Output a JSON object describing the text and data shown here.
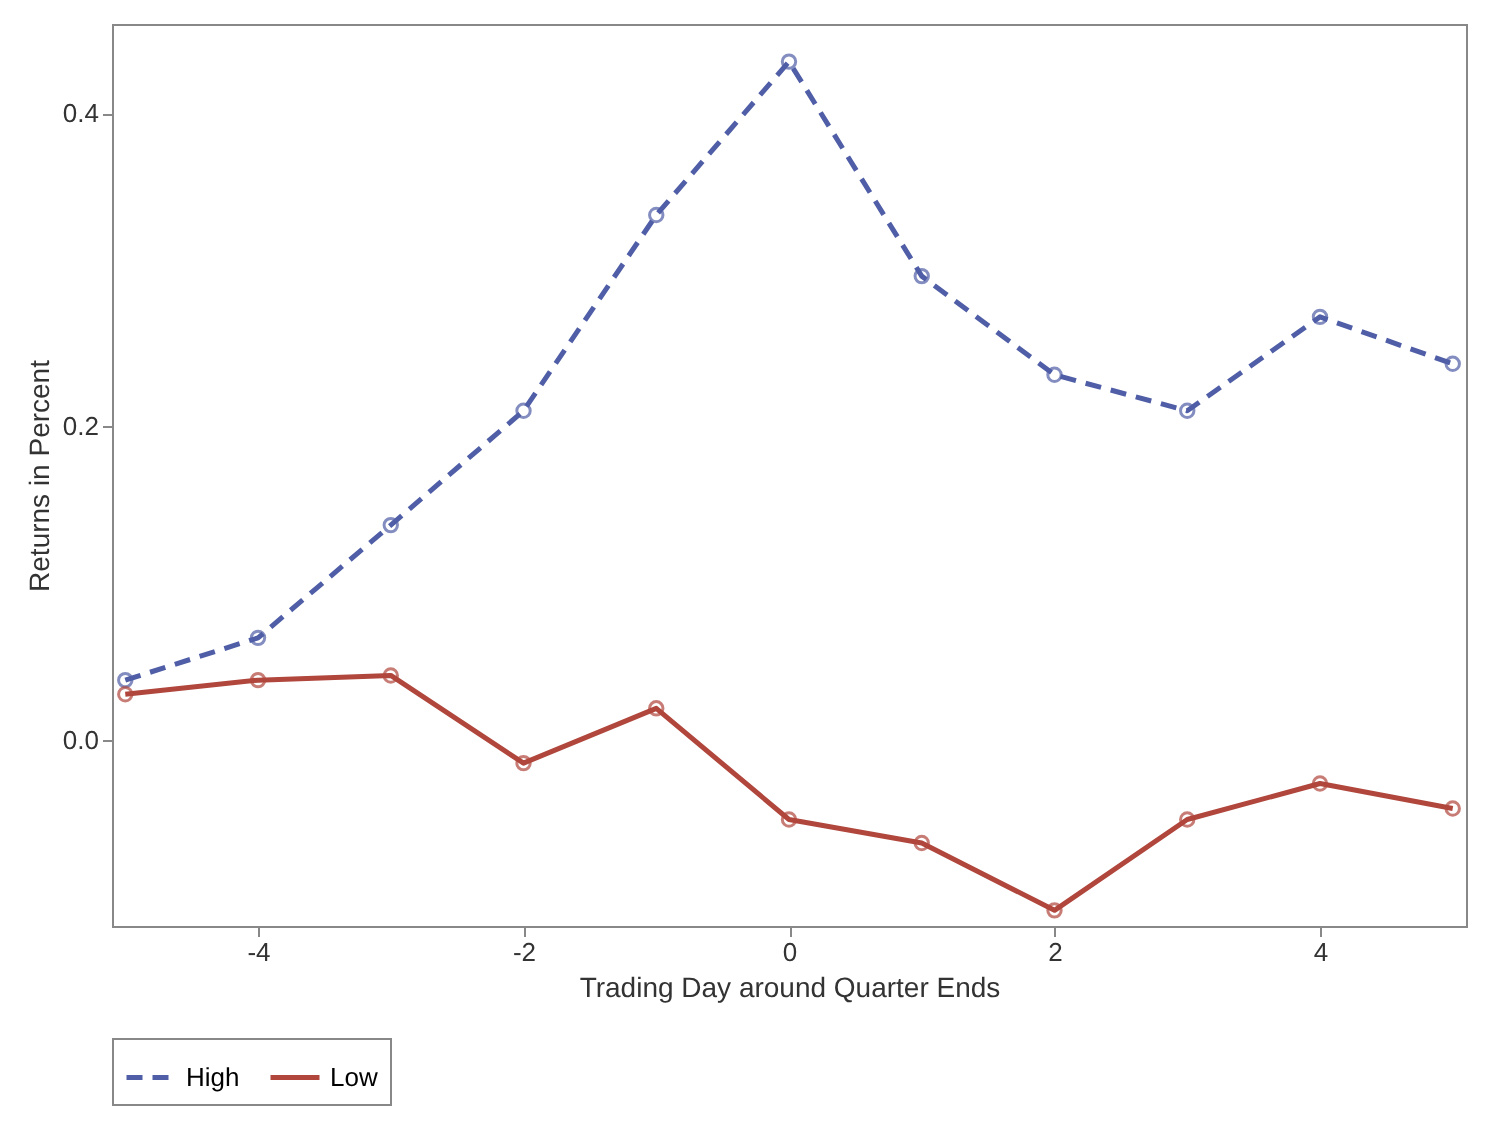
{
  "chart_data": {
    "type": "line",
    "xlabel": "Trading Day around Quarter Ends",
    "ylabel": "Returns in Percent",
    "x": [
      -5,
      -4,
      -3,
      -2,
      -1,
      0,
      1,
      2,
      3,
      4,
      5
    ],
    "series": [
      {
        "name": "High",
        "color": "#4f5ea6",
        "line_style": "dashed",
        "values": [
          0.038,
          0.065,
          0.137,
          0.21,
          0.335,
          0.433,
          0.296,
          0.233,
          0.21,
          0.27,
          0.24
        ]
      },
      {
        "name": "Low",
        "color": "#b0463c",
        "line_style": "solid",
        "values": [
          0.029,
          0.038,
          0.041,
          -0.015,
          0.02,
          -0.051,
          -0.066,
          -0.109,
          -0.051,
          -0.028,
          -0.044
        ]
      }
    ],
    "xlim": [
      -5.1,
      5.1
    ],
    "xticks": [
      -4,
      -2,
      0,
      2,
      4
    ],
    "ylim": [
      -0.119,
      0.457
    ],
    "yticks": [
      {
        "value": 0,
        "label": "0.0"
      },
      0.2,
      0.4
    ],
    "marker": "circle",
    "grid": false,
    "legend": "bottom"
  }
}
